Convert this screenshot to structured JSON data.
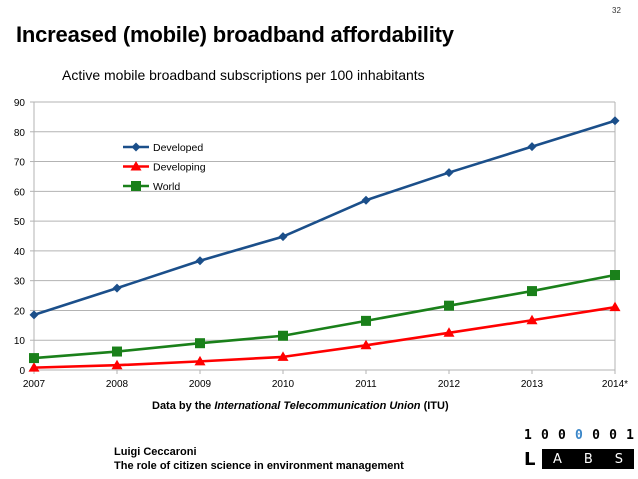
{
  "slide": {
    "number": "32",
    "title": "Increased (mobile) broadband affordability",
    "source_prefix": "Data by the ",
    "source_org": "International Telecommunication Union",
    "source_suffix": " (ITU)",
    "author": "Luigi Ceccaroni",
    "talk_title": "The role of citizen science in environment management",
    "logo": {
      "digits": [
        "1",
        "0",
        "0",
        "0",
        "0",
        "0",
        "1"
      ],
      "highlight_index": 3,
      "highlight_color": "#3a86c8",
      "l_letter": "L",
      "bar_letters": [
        "A",
        "B",
        "S"
      ]
    }
  },
  "chart_data": {
    "type": "line",
    "title": "Active mobile broadband subscriptions per 100 inhabitants",
    "xlabel": "",
    "ylabel": "",
    "categories": [
      "2007",
      "2008",
      "2009",
      "2010",
      "2011",
      "2012",
      "2013",
      "2014*"
    ],
    "ylim": [
      0,
      90
    ],
    "yticks": [
      0,
      10,
      20,
      30,
      40,
      50,
      60,
      70,
      80,
      90
    ],
    "grid": true,
    "legend_position": "upper-left inside plot",
    "series": [
      {
        "name": "Developed",
        "color": "#1b4f8a",
        "marker": "diamond",
        "values": [
          18.5,
          27.5,
          36.7,
          44.8,
          57.0,
          66.3,
          75.0,
          83.7
        ]
      },
      {
        "name": "Developing",
        "color": "#ff0000",
        "marker": "triangle",
        "values": [
          0.8,
          1.6,
          2.9,
          4.4,
          8.3,
          12.5,
          16.7,
          21.1
        ]
      },
      {
        "name": "World",
        "color": "#1a801a",
        "marker": "square",
        "values": [
          4.0,
          6.2,
          9.0,
          11.5,
          16.5,
          21.6,
          26.5,
          31.9
        ]
      }
    ]
  }
}
